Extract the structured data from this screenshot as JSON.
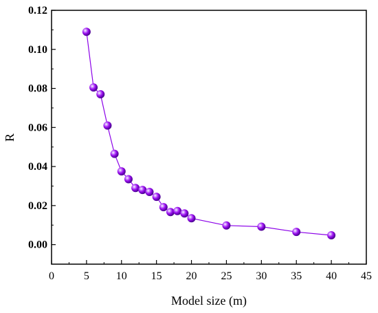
{
  "chart_data": {
    "type": "scatter",
    "title": "",
    "xlabel": "Model size (m)",
    "ylabel": "R",
    "xlim": [
      0,
      45
    ],
    "ylim": [
      -0.01,
      0.12
    ],
    "x_ticks": [
      0,
      5,
      10,
      15,
      20,
      25,
      30,
      35,
      40,
      45
    ],
    "x_tick_labels": [
      "0",
      "5",
      "10",
      "15",
      "20",
      "25",
      "30",
      "35",
      "40",
      "45"
    ],
    "y_ticks": [
      0.0,
      0.02,
      0.04,
      0.06,
      0.08,
      0.1,
      0.12
    ],
    "y_tick_labels": [
      "0.00",
      "0.02",
      "0.04",
      "0.06",
      "0.08",
      "0.10",
      "0.12"
    ],
    "grid": false,
    "connected": true,
    "series": [
      {
        "color": "#8b00e8",
        "x": [
          5,
          6,
          7,
          8,
          9,
          10,
          11,
          12,
          13,
          14,
          15,
          16,
          17,
          18,
          19,
          20,
          25,
          30,
          35,
          40
        ],
        "y": [
          0.109,
          0.0805,
          0.077,
          0.061,
          0.0465,
          0.0375,
          0.0335,
          0.029,
          0.028,
          0.027,
          0.0245,
          0.0192,
          0.0167,
          0.0172,
          0.016,
          0.0135,
          0.0098,
          0.0092,
          0.0065,
          0.0048
        ]
      }
    ]
  }
}
